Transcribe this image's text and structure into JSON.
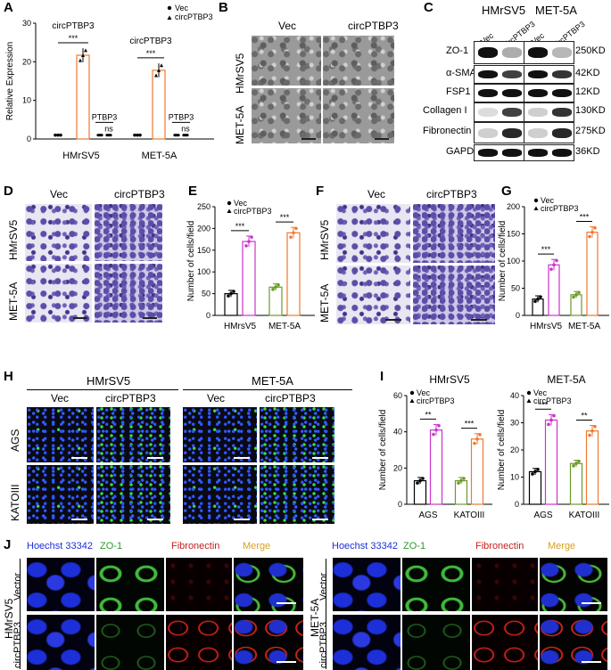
{
  "panels": {
    "A": "A",
    "B": "B",
    "C": "C",
    "D": "D",
    "E": "E",
    "F": "F",
    "G": "G",
    "H": "H",
    "I": "I",
    "J": "J"
  },
  "colors": {
    "vec": "#000000",
    "circ_orange": "#f07830",
    "circ_magenta": "#cc33cc",
    "green": "#6a9a28"
  },
  "chart_data": [
    {
      "id": "A",
      "type": "bar",
      "ylabel": "Relative Expression",
      "ylim": [
        0,
        30
      ],
      "yticks": [
        "0",
        "10",
        "20",
        "30"
      ],
      "categories": [
        "HMrSV5",
        "MET-5A"
      ],
      "legend": [
        "Vec",
        "circPTBP3"
      ],
      "series": [
        {
          "name": "Vec",
          "values": [
            1,
            1
          ]
        },
        {
          "name": "circPTBP3",
          "values": [
            21.7,
            17.8
          ]
        }
      ],
      "annotations": {
        "circ_label": "circPTBP3",
        "ptbp_label": "PTBP3",
        "sig": "***",
        "ns": "ns"
      }
    },
    {
      "id": "E",
      "type": "bar",
      "ylabel": "Number of cells/field",
      "ylim": [
        0,
        250
      ],
      "yticks": [
        "0",
        "50",
        "100",
        "150",
        "200",
        "250"
      ],
      "categories": [
        "HMrsV5",
        "MET-5A"
      ],
      "legend": [
        "Vec",
        "circPTBP3"
      ],
      "series": [
        {
          "name": "Vec",
          "values": [
            50,
            65
          ]
        },
        {
          "name": "circPTBP3",
          "values": [
            170,
            190
          ]
        }
      ],
      "sig": "***"
    },
    {
      "id": "G",
      "type": "bar",
      "ylabel": "Number of cells/field",
      "ylim": [
        0,
        200
      ],
      "yticks": [
        "0",
        "50",
        "100",
        "150",
        "200"
      ],
      "categories": [
        "HMrsV5",
        "MET-5A"
      ],
      "legend": [
        "Vec",
        "circPTBP3"
      ],
      "series": [
        {
          "name": "Vec",
          "values": [
            30,
            38
          ]
        },
        {
          "name": "circPTBP3",
          "values": [
            93,
            153
          ]
        }
      ],
      "sig": "***"
    },
    {
      "id": "I1",
      "type": "bar",
      "title": "HMrSV5",
      "ylabel": "Number of cells/field",
      "ylim": [
        0,
        60
      ],
      "yticks": [
        "0",
        "20",
        "40",
        "60"
      ],
      "categories": [
        "AGS",
        "KATOIII"
      ],
      "legend": [
        "Vec",
        "circPTBP3"
      ],
      "series": [
        {
          "name": "Vec",
          "values": [
            13,
            13
          ]
        },
        {
          "name": "circPTBP3",
          "values": [
            41,
            36
          ]
        }
      ],
      "sig": [
        "**",
        "***"
      ]
    },
    {
      "id": "I2",
      "type": "bar",
      "title": "MET-5A",
      "ylabel": "Number of cells/field",
      "ylim": [
        0,
        40
      ],
      "yticks": [
        "0",
        "10",
        "20",
        "30",
        "40"
      ],
      "categories": [
        "AGS",
        "KATOIII"
      ],
      "legend": [
        "Vec",
        "circPTBP3"
      ],
      "series": [
        {
          "name": "Vec",
          "values": [
            12,
            15
          ]
        },
        {
          "name": "circPTBP3",
          "values": [
            31,
            27
          ]
        }
      ],
      "sig": [
        "***",
        "**"
      ]
    }
  ],
  "B": {
    "col1": "Vec",
    "col2": "circPTBP3",
    "row1": "HMrSV5",
    "row2": "MET-5A"
  },
  "C": {
    "cell1": "HMrSV5",
    "cell2": "MET-5A",
    "lane_vec": "Vec",
    "lane_circ": "circPTBP3",
    "proteins": [
      "ZO-1",
      "α-SMA",
      "FSP1",
      "Collagen I",
      "Fibronectin",
      "GAPDH"
    ],
    "sizes": [
      "250KD",
      "42KD",
      "12KD",
      "130KD",
      "275KD",
      "36KD"
    ]
  },
  "D": {
    "col1": "Vec",
    "col2": "circPTBP3",
    "row1": "HMrSV5",
    "row2": "MET-5A"
  },
  "F": {
    "col1": "Vec",
    "col2": "circPTBP3",
    "row1": "HMrSV5",
    "row2": "MET-5A"
  },
  "H": {
    "group1": "HMrSV5",
    "group2": "MET-5A",
    "col_vec": "Vec",
    "col_circ": "circPTBP3",
    "row1": "AGS",
    "row2": "KATOIII"
  },
  "J": {
    "stains": [
      "Hoechst 33342",
      "ZO-1",
      "Fibronectin",
      "Merge"
    ],
    "left_cell": "HMrSV5",
    "right_cell": "MET-5A",
    "row1": "Vector",
    "row2": "circPTBP3"
  }
}
